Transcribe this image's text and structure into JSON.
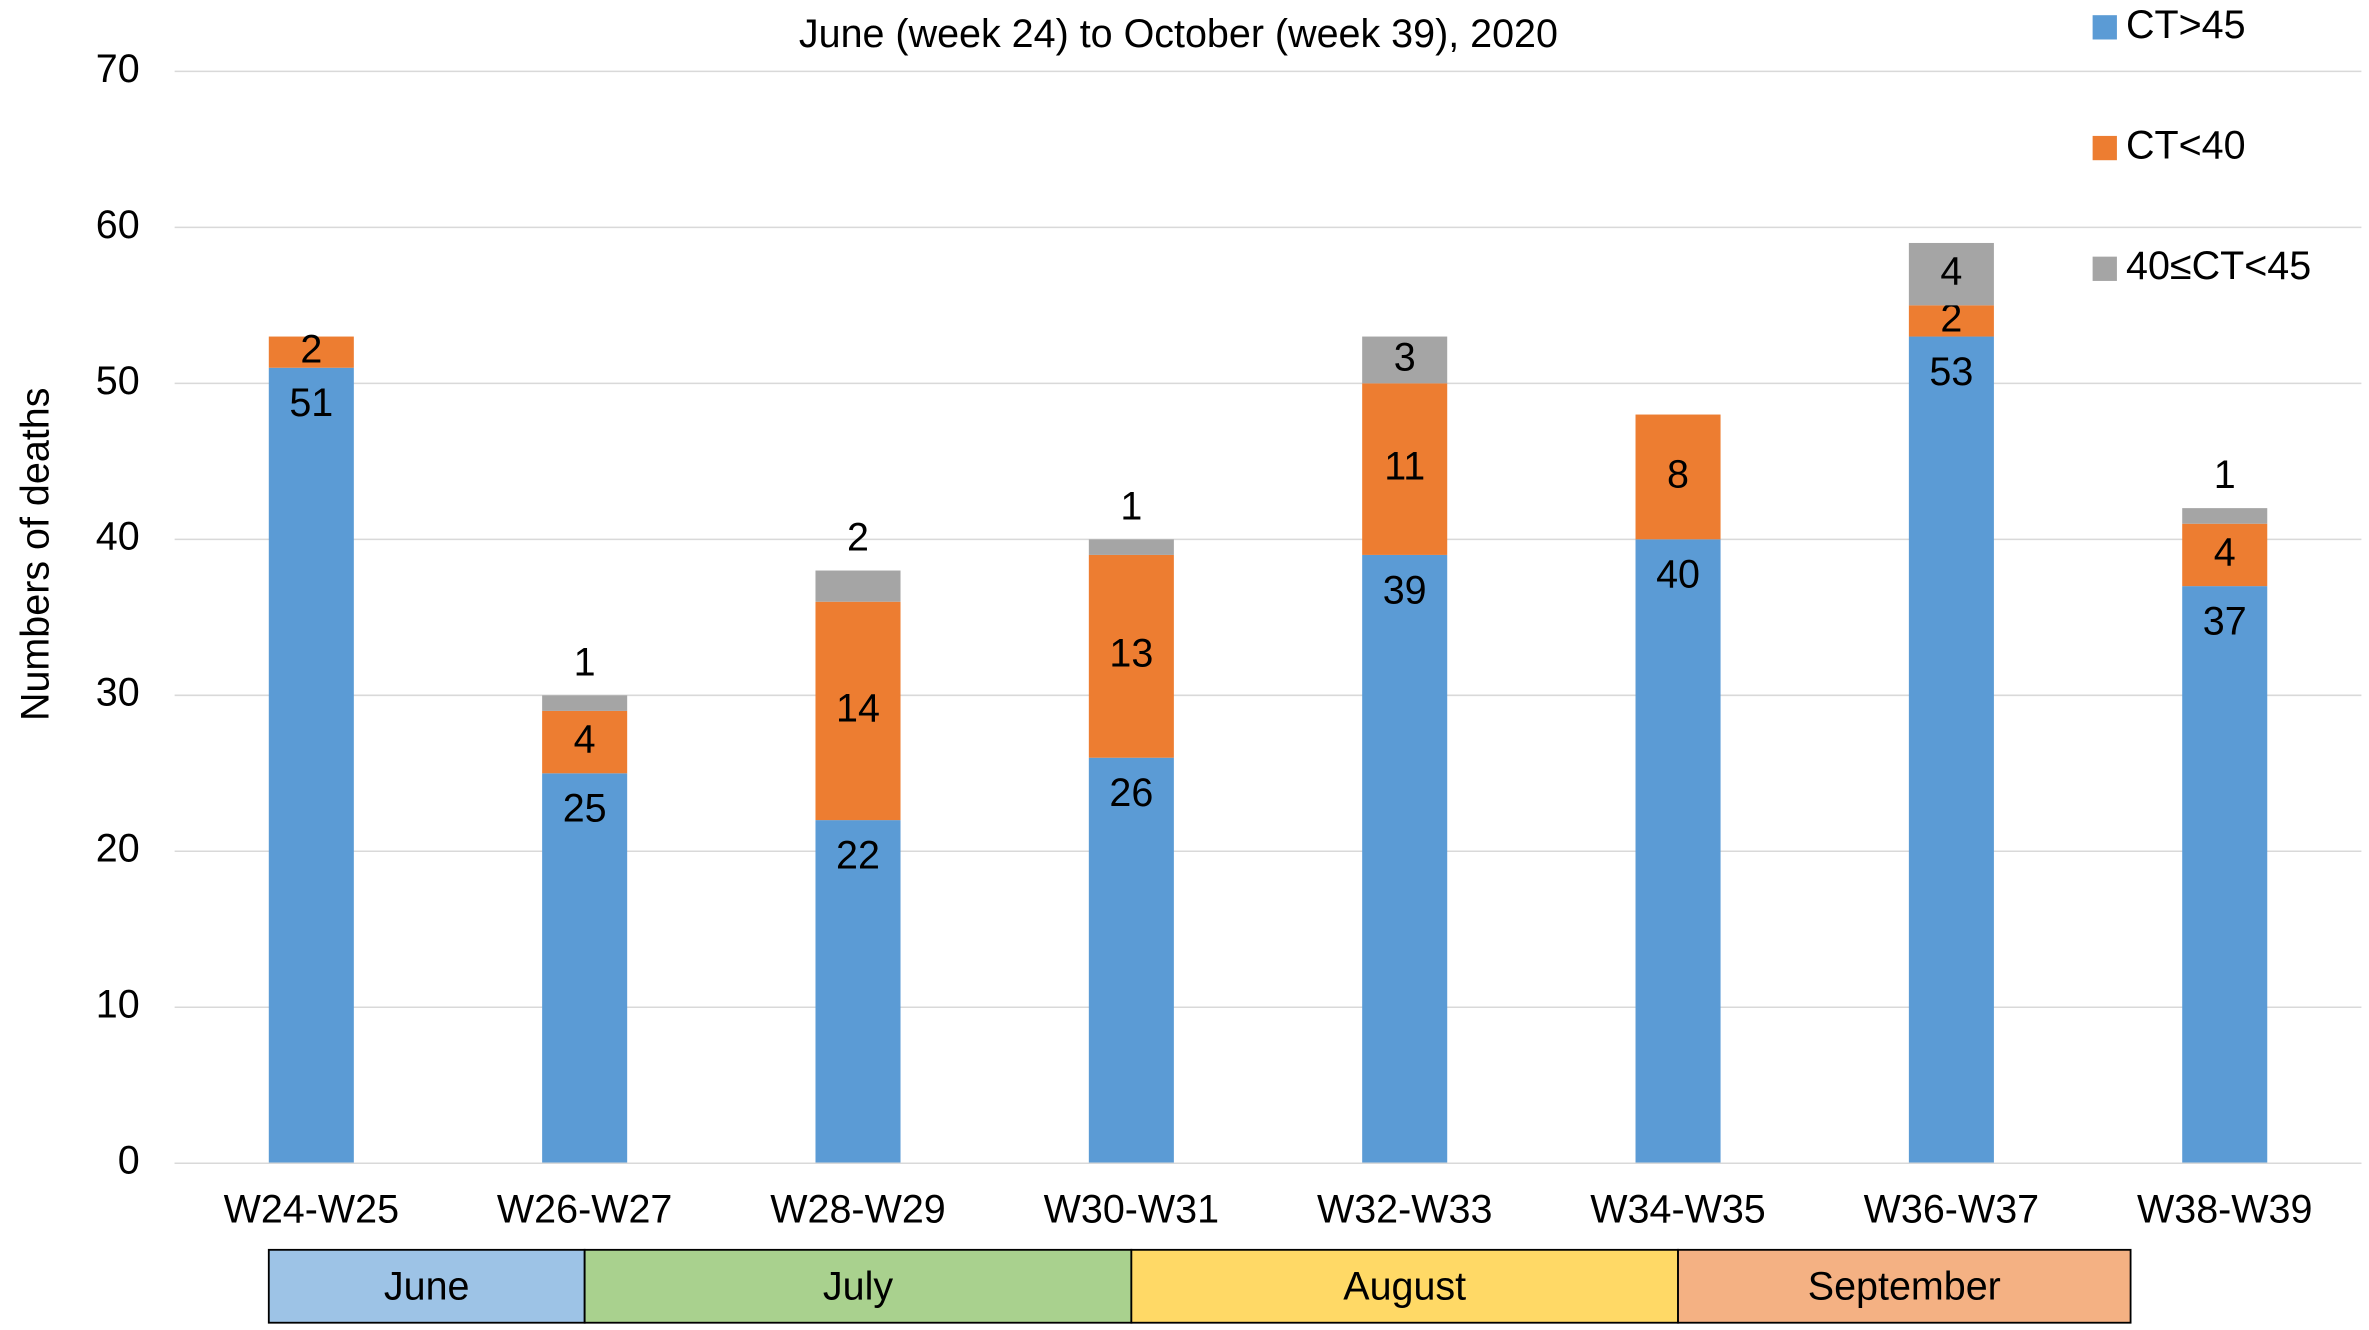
{
  "chart_data": {
    "type": "stacked_bar",
    "title": "June (week 24) to October (week 39), 2020",
    "y_label": "Numbers of deaths",
    "categories": [
      "W24-W25",
      "W26-W27",
      "W28-W29",
      "W30-W31",
      "W32-W33",
      "W34-W35",
      "W36-W37",
      "W38-W39"
    ],
    "series": [
      {
        "name": "CT>45",
        "color": "#5b9bd5",
        "values": [
          51,
          25,
          22,
          26,
          39,
          40,
          53,
          37
        ]
      },
      {
        "name": "CT<40",
        "color": "#ed7d31",
        "values": [
          2,
          4,
          14,
          13,
          11,
          8,
          2,
          4
        ]
      },
      {
        "name": "40≤CT<45",
        "color": "#a5a5a5",
        "values": [
          null,
          1,
          2,
          1,
          3,
          null,
          4,
          1
        ]
      }
    ],
    "ylim": [
      0,
      70
    ],
    "yticks": [
      0,
      10,
      20,
      30,
      40,
      50,
      60,
      70
    ],
    "grid": true,
    "month_bands": [
      {
        "label": "June",
        "color": "#9dc3e6"
      },
      {
        "label": "July",
        "color": "#a9d18e"
      },
      {
        "label": "August",
        "color": "#ffd966"
      },
      {
        "label": "September",
        "color": "#f4b183"
      }
    ]
  }
}
